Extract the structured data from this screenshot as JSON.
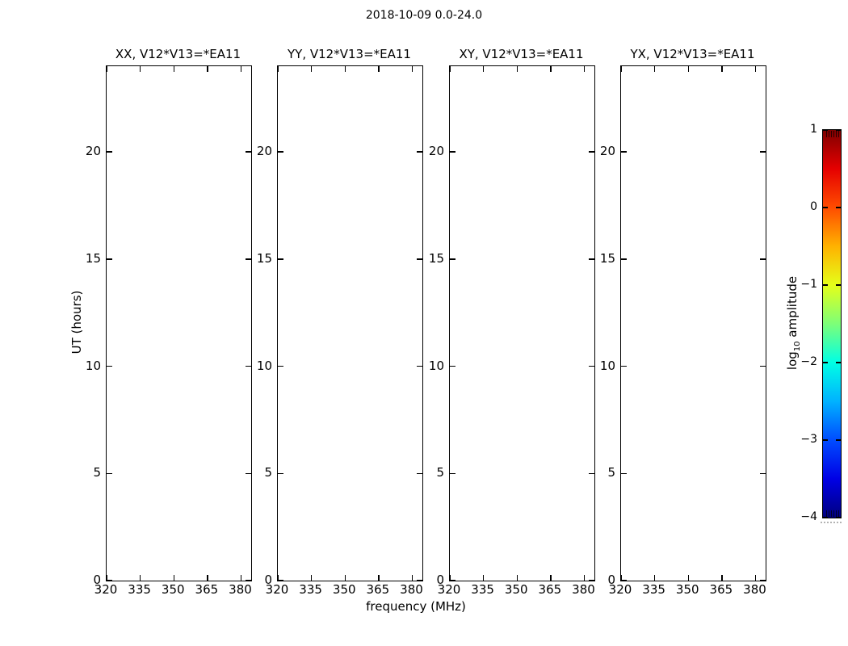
{
  "figure": {
    "title": "2018-10-09 0.0-24.0"
  },
  "chart_data": {
    "type": "heatmap",
    "title": "2018-10-09 0.0-24.0",
    "subplots": [
      "XX, V12*V13=*EA11",
      "YY, V12*V13=*EA11",
      "XY, V12*V13=*EA11",
      "YX, V12*V13=*EA11"
    ],
    "xlabel": "frequency (MHz)",
    "ylabel": "UT (hours)",
    "xlim": [
      320,
      384.5
    ],
    "ylim": [
      0,
      24
    ],
    "xticks": [
      320,
      335,
      350,
      365,
      380
    ],
    "yticks": [
      0,
      5,
      10,
      15,
      20
    ],
    "grid": false,
    "panels_empty": true,
    "values": [],
    "colorbar": {
      "label": "log10 amplitude",
      "label_parts": {
        "pre": "log",
        "sub": "10",
        "post": " amplitude"
      },
      "range": [
        -4,
        1
      ],
      "ticks": [
        1,
        0,
        -1,
        -2,
        -3,
        -4
      ],
      "colormap": "jet",
      "position": "right",
      "gradient_stops": [
        {
          "pos": 0,
          "color": "#7f0000"
        },
        {
          "pos": 10,
          "color": "#e50000"
        },
        {
          "pos": 20,
          "color": "#ff4c00"
        },
        {
          "pos": 30,
          "color": "#ffb200"
        },
        {
          "pos": 40,
          "color": "#e5ff19"
        },
        {
          "pos": 50,
          "color": "#7dff78"
        },
        {
          "pos": 60,
          "color": "#00ffe5"
        },
        {
          "pos": 70,
          "color": "#00b2ff"
        },
        {
          "pos": 80,
          "color": "#004cff"
        },
        {
          "pos": 90,
          "color": "#0000e5"
        },
        {
          "pos": 100,
          "color": "#00007f"
        }
      ]
    }
  }
}
